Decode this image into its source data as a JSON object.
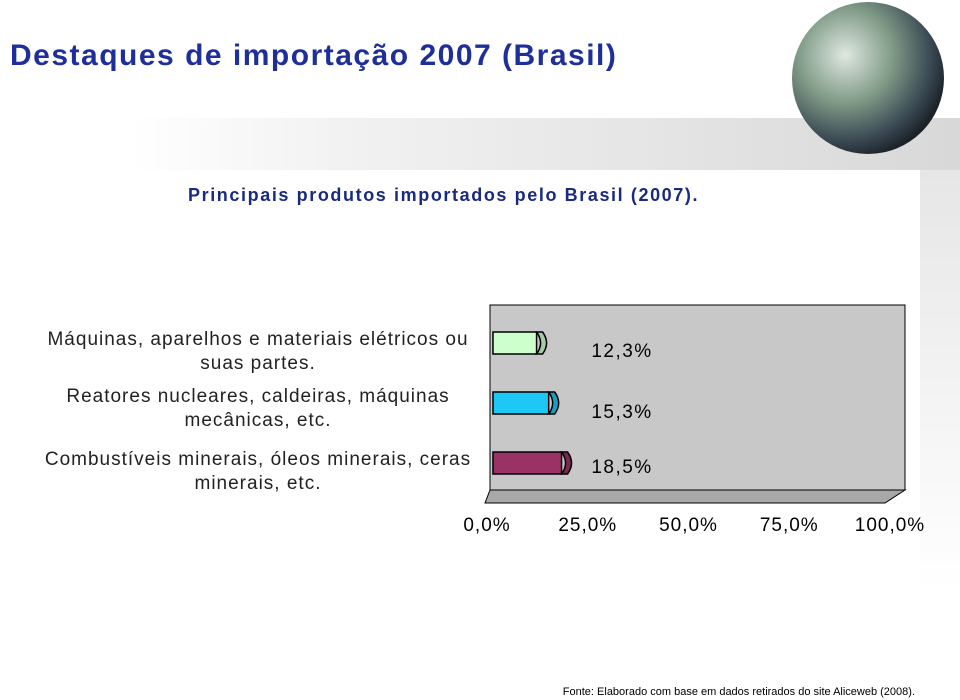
{
  "chart_data": {
    "type": "bar",
    "orientation": "horizontal",
    "title": "Destaques de importação 2007 (Brasil)",
    "subtitle": "Principais produtos importados pelo Brasil (2007).",
    "categories": [
      "Máquinas, aparelhos e materiais elétricos ou suas partes.",
      "Reatores nucleares, caldeiras, máquinas mecânicas, etc.",
      "Combustíveis minerais, óleos minerais, ceras minerais, etc."
    ],
    "values": [
      12.3,
      15.3,
      18.5
    ],
    "value_labels": [
      "12,3%",
      "15,3%",
      "18,5%"
    ],
    "colors": [
      "#ccffcc",
      "#1ec8f5",
      "#993366"
    ],
    "xlim": [
      0,
      100
    ],
    "xticks": [
      {
        "value": 0,
        "label": "0,0%"
      },
      {
        "value": 25,
        "label": "25,0%"
      },
      {
        "value": 50,
        "label": "50,0%"
      },
      {
        "value": 75,
        "label": "75,0%"
      },
      {
        "value": 100,
        "label": "100,0%"
      }
    ],
    "source": "Fonte: Elaborado com base em dados retirados do site Aliceweb (2008)."
  }
}
